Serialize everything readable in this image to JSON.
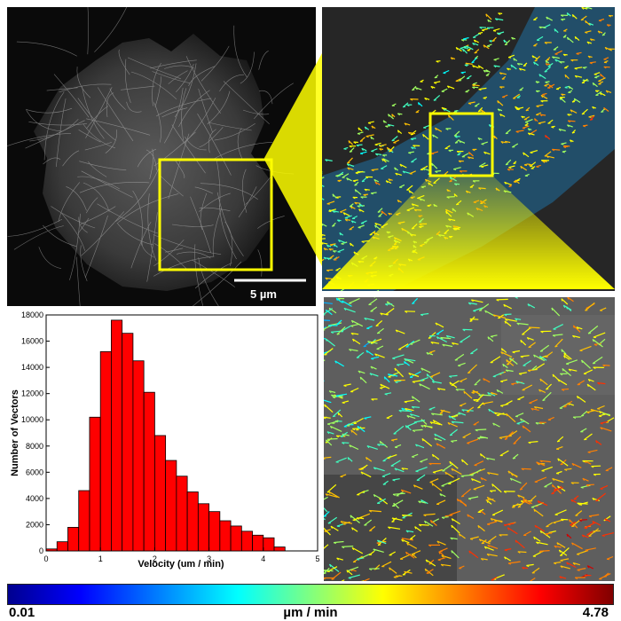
{
  "scale_bar": {
    "label": "5 µm"
  },
  "colorbar": {
    "min_label": "0.01",
    "unit_label": "µm / min",
    "max_label": "4.78"
  },
  "colors": {
    "highlight": "#ffff00",
    "bar_fill": "#ff0000"
  },
  "chart_data": {
    "type": "bar",
    "xlabel": "Velocity (um / min)",
    "ylabel": "Number of Vectors",
    "xlim": [
      0,
      5
    ],
    "ylim": [
      0,
      18000
    ],
    "xticks": [
      0,
      1,
      2,
      3,
      4,
      5
    ],
    "yticks": [
      0,
      2000,
      4000,
      6000,
      8000,
      10000,
      12000,
      14000,
      16000,
      18000
    ],
    "bin_width": 0.2,
    "bin_starts": [
      0.0,
      0.2,
      0.4,
      0.6,
      0.8,
      1.0,
      1.2,
      1.4,
      1.6,
      1.8,
      2.0,
      2.2,
      2.4,
      2.6,
      2.8,
      3.0,
      3.2,
      3.4,
      3.6,
      3.8,
      4.0,
      4.2
    ],
    "values": [
      150,
      700,
      1800,
      4600,
      10200,
      15200,
      17600,
      16600,
      14500,
      12100,
      8800,
      6900,
      5700,
      4500,
      3600,
      3000,
      2300,
      1900,
      1500,
      1200,
      1000,
      300
    ]
  }
}
